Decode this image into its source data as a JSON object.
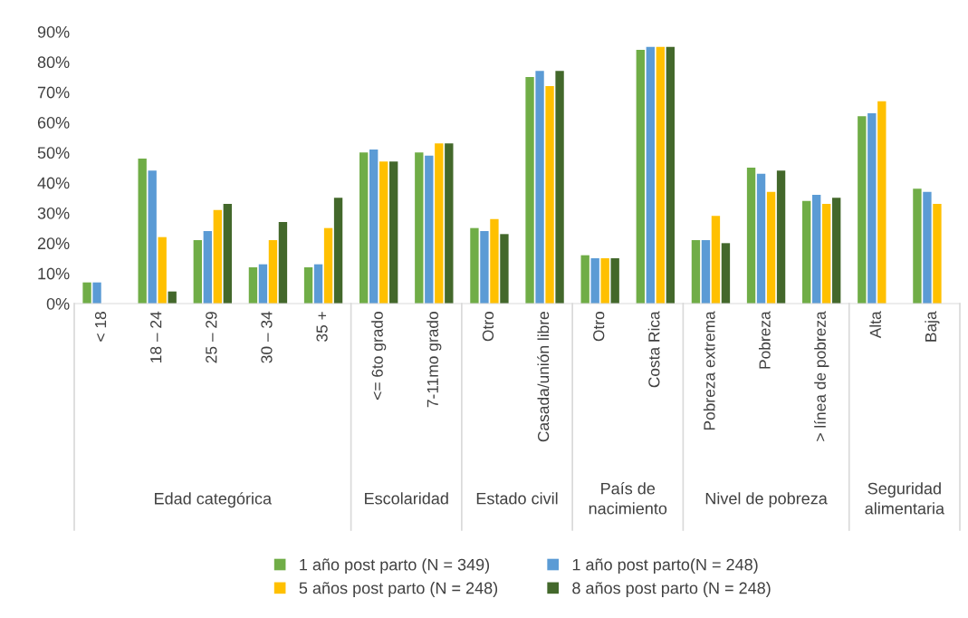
{
  "chart_data": {
    "type": "bar",
    "categories": [
      "< 18",
      "18 – 24",
      "25 – 29",
      "30 – 34",
      "35 +",
      "<= 6to grado",
      "7-11mo grado",
      "Otro",
      "Casada/unión libre",
      "Otro",
      "Costa Rica",
      "Pobreza extrema",
      "Pobreza",
      "> línea de pobreza",
      "Alta",
      "Baja"
    ],
    "series": [
      {
        "name": "1 año post parto (N = 349)",
        "color": "#70ad47",
        "values": [
          7,
          48,
          21,
          12,
          12,
          50,
          50,
          25,
          75,
          16,
          84,
          21,
          45,
          34,
          62,
          38
        ]
      },
      {
        "name": "1 año post parto(N = 248)",
        "color": "#5b9bd5",
        "values": [
          7,
          44,
          24,
          13,
          13,
          51,
          49,
          24,
          77,
          15,
          85,
          21,
          43,
          36,
          63,
          37
        ]
      },
      {
        "name": "5 años post parto (N = 248)",
        "color": "#ffc000",
        "values": [
          null,
          22,
          31,
          21,
          25,
          47,
          53,
          28,
          72,
          15,
          85,
          29,
          37,
          33,
          67,
          33
        ]
      },
      {
        "name": "8 años post parto (N = 248)",
        "color": "#43682b",
        "values": [
          null,
          4,
          33,
          27,
          35,
          47,
          53,
          23,
          77,
          15,
          85,
          20,
          44,
          35,
          null,
          null
        ]
      }
    ],
    "annotations": [
      "Edad categórica",
      "Escolaridad",
      "Estado civil",
      "País de\nnacimiento",
      "Nivel de pobreza",
      "Seguridad\nalimentaria"
    ],
    "ylim": [
      0,
      90
    ],
    "yticks": [
      {
        "value": 0,
        "label": "0%"
      },
      {
        "value": 10,
        "label": "10%"
      },
      {
        "value": 20,
        "label": "20%"
      },
      {
        "value": 30,
        "label": "30%"
      },
      {
        "value": 40,
        "label": "40%"
      },
      {
        "value": 50,
        "label": "50%"
      },
      {
        "value": 60,
        "label": "60%"
      },
      {
        "value": 70,
        "label": "70%"
      },
      {
        "value": 80,
        "label": "80%"
      },
      {
        "value": 90,
        "label": "90%"
      }
    ],
    "grid": false,
    "legend": "bottom"
  }
}
